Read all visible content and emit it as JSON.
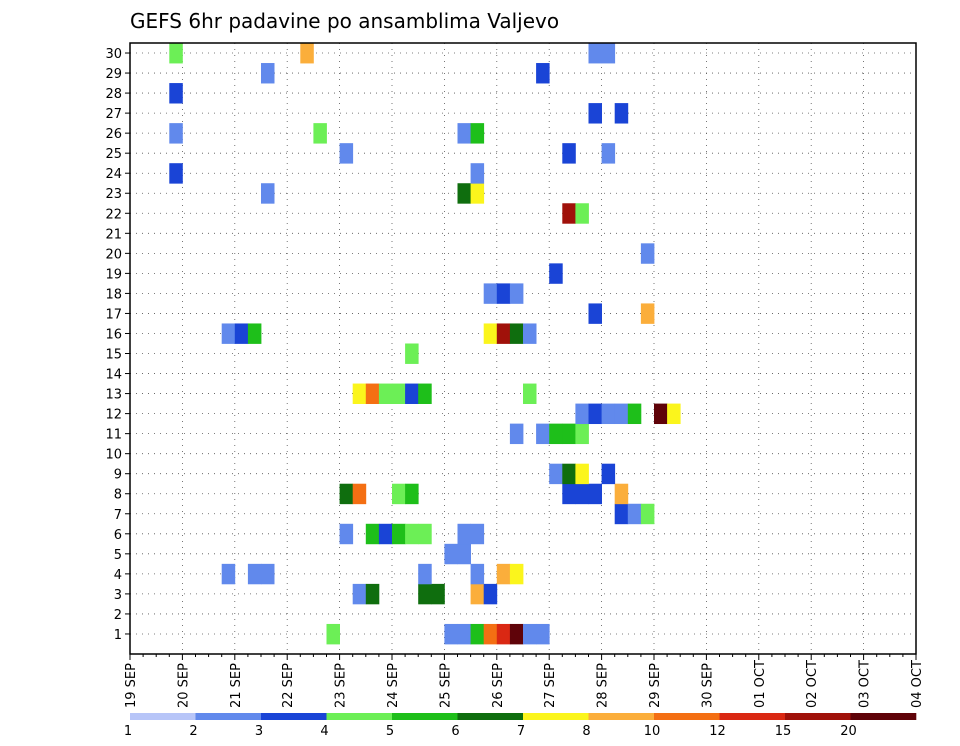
{
  "chart_data": {
    "type": "heatmap",
    "title": "GEFS 6hr padavine po ansamblima Valjevo",
    "x_ticks": [
      "19 SEP",
      "20 SEP",
      "21 SEP",
      "22 SEP",
      "23 SEP",
      "24 SEP",
      "25 SEP",
      "26 SEP",
      "27 SEP",
      "28 SEP",
      "29 SEP",
      "30 SEP",
      "01 OCT",
      "02 OCT",
      "03 OCT",
      "04 OCT"
    ],
    "y_ticks": [
      1,
      2,
      3,
      4,
      5,
      6,
      7,
      8,
      9,
      10,
      11,
      12,
      13,
      14,
      15,
      16,
      17,
      18,
      19,
      20,
      21,
      22,
      23,
      24,
      25,
      26,
      27,
      28,
      29,
      30
    ],
    "steps_per_day": 4,
    "grid": true,
    "legend": {
      "placement": "bottom",
      "labels": [
        "1",
        "2",
        "3",
        "4",
        "5",
        "6",
        "7",
        "8",
        "10",
        "12",
        "15",
        "20"
      ],
      "colors": [
        "#b7c5f8",
        "#6189ec",
        "#1a44d6",
        "#6cef56",
        "#1ebf1a",
        "#0f6e0e",
        "#fbf51c",
        "#fbae3b",
        "#f46f13",
        "#da2813",
        "#a0110a",
        "#5f0309"
      ]
    },
    "cells": [
      [
        1,
        15,
        3
      ],
      [
        1,
        24,
        1
      ],
      [
        1,
        25,
        1
      ],
      [
        1,
        26,
        4
      ],
      [
        1,
        27,
        8
      ],
      [
        1,
        28,
        9
      ],
      [
        1,
        29,
        11
      ],
      [
        1,
        30,
        1
      ],
      [
        1,
        31,
        1
      ],
      [
        3,
        17,
        1
      ],
      [
        3,
        18,
        5
      ],
      [
        3,
        22,
        5
      ],
      [
        3,
        23,
        5
      ],
      [
        3,
        26,
        7
      ],
      [
        3,
        27,
        2
      ],
      [
        4,
        7,
        1
      ],
      [
        4,
        9,
        1
      ],
      [
        4,
        10,
        1
      ],
      [
        4,
        22,
        1
      ],
      [
        4,
        26,
        1
      ],
      [
        4,
        28,
        7
      ],
      [
        4,
        29,
        6
      ],
      [
        5,
        24,
        1
      ],
      [
        5,
        25,
        1
      ],
      [
        6,
        16,
        1
      ],
      [
        6,
        18,
        4
      ],
      [
        6,
        19,
        2
      ],
      [
        6,
        20,
        4
      ],
      [
        6,
        21,
        3
      ],
      [
        6,
        22,
        3
      ],
      [
        6,
        25,
        1
      ],
      [
        6,
        26,
        1
      ],
      [
        7,
        37,
        2
      ],
      [
        7,
        38,
        1
      ],
      [
        7,
        39,
        3
      ],
      [
        8,
        16,
        5
      ],
      [
        8,
        17,
        8
      ],
      [
        8,
        20,
        3
      ],
      [
        8,
        21,
        4
      ],
      [
        8,
        33,
        2
      ],
      [
        8,
        34,
        2
      ],
      [
        8,
        35,
        2
      ],
      [
        8,
        37,
        7
      ],
      [
        9,
        32,
        1
      ],
      [
        9,
        33,
        5
      ],
      [
        9,
        34,
        6
      ],
      [
        9,
        36,
        2
      ],
      [
        11,
        29,
        1
      ],
      [
        11,
        31,
        1
      ],
      [
        11,
        32,
        4
      ],
      [
        11,
        33,
        4
      ],
      [
        11,
        34,
        3
      ],
      [
        12,
        34,
        1
      ],
      [
        12,
        35,
        2
      ],
      [
        12,
        36,
        1
      ],
      [
        12,
        37,
        1
      ],
      [
        12,
        38,
        4
      ],
      [
        12,
        40,
        11
      ],
      [
        12,
        41,
        6
      ],
      [
        13,
        17,
        6
      ],
      [
        13,
        18,
        8
      ],
      [
        13,
        19,
        3
      ],
      [
        13,
        20,
        3
      ],
      [
        13,
        21,
        2
      ],
      [
        13,
        22,
        4
      ],
      [
        13,
        30,
        3
      ],
      [
        15,
        21,
        3
      ],
      [
        16,
        7,
        1
      ],
      [
        16,
        8,
        2
      ],
      [
        16,
        9,
        4
      ],
      [
        16,
        27,
        6
      ],
      [
        16,
        28,
        10
      ],
      [
        16,
        29,
        5
      ],
      [
        16,
        30,
        1
      ],
      [
        17,
        35,
        2
      ],
      [
        17,
        39,
        7
      ],
      [
        18,
        27,
        1
      ],
      [
        18,
        28,
        2
      ],
      [
        18,
        29,
        1
      ],
      [
        19,
        32,
        2
      ],
      [
        20,
        39,
        1
      ],
      [
        22,
        33,
        10
      ],
      [
        22,
        34,
        3
      ],
      [
        23,
        10,
        1
      ],
      [
        23,
        25,
        5
      ],
      [
        23,
        26,
        6
      ],
      [
        24,
        3,
        2
      ],
      [
        24,
        26,
        1
      ],
      [
        25,
        16,
        1
      ],
      [
        25,
        33,
        2
      ],
      [
        25,
        36,
        1
      ],
      [
        26,
        3,
        1
      ],
      [
        26,
        14,
        3
      ],
      [
        26,
        25,
        1
      ],
      [
        26,
        26,
        4
      ],
      [
        27,
        35,
        2
      ],
      [
        27,
        37,
        2
      ],
      [
        28,
        3,
        2
      ],
      [
        29,
        10,
        1
      ],
      [
        29,
        31,
        2
      ],
      [
        30,
        3,
        3
      ],
      [
        30,
        13,
        7
      ],
      [
        30,
        35,
        1
      ],
      [
        30,
        36,
        1
      ]
    ]
  }
}
